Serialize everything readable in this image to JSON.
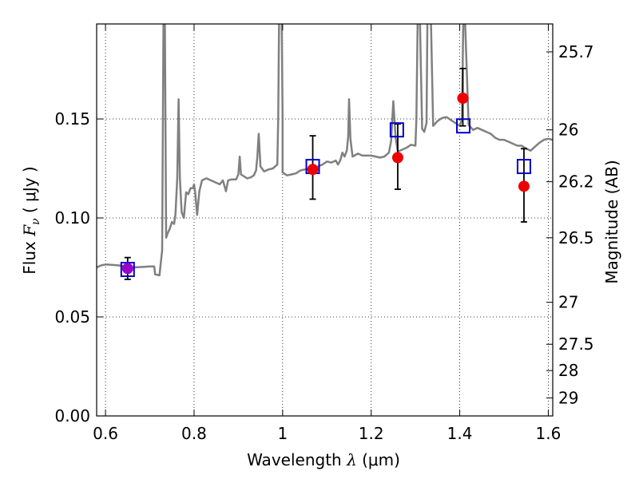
{
  "chart_data": {
    "type": "scatter",
    "xlabel": "Wavelength  λ (μm)",
    "xlabel_parts": {
      "text": "Wavelength  ",
      "sym": "λ",
      "unit": "(μm)"
    },
    "ylabel_parts": {
      "text": "Flux  ",
      "sym": "F",
      "sub": "ν",
      "unit": "( μJy )"
    },
    "ylabel_right": "Magnitude (AB)",
    "xlim": [
      0.58,
      1.61
    ],
    "ylim": [
      0.0,
      0.198
    ],
    "grid": true,
    "x_ticks": [
      {
        "value": 0.6,
        "label": "0.6"
      },
      {
        "value": 0.8,
        "label": "0.8"
      },
      {
        "value": 1.0,
        "label": "1"
      },
      {
        "value": 1.2,
        "label": "1.2"
      },
      {
        "value": 1.4,
        "label": "1.4"
      },
      {
        "value": 1.6,
        "label": "1.6"
      }
    ],
    "y_ticks": [
      {
        "value": 0.0,
        "label": "0.00"
      },
      {
        "value": 0.05,
        "label": "0.05"
      },
      {
        "value": 0.1,
        "label": "0.10"
      },
      {
        "value": 0.15,
        "label": "0.15"
      }
    ],
    "right_ticks": [
      {
        "flux": 0.1839,
        "label": "25.7"
      },
      {
        "flux": 0.1445,
        "label": "26"
      },
      {
        "flux": 0.1183,
        "label": "26.2"
      },
      {
        "flux": 0.09,
        "label": "26.5"
      },
      {
        "flux": 0.0574,
        "label": "27"
      },
      {
        "flux": 0.0362,
        "label": "27.5"
      },
      {
        "flux": 0.0229,
        "label": "28"
      },
      {
        "flux": 0.0091,
        "label": "29"
      }
    ],
    "series": [
      {
        "name": "model-spectrum",
        "kind": "line",
        "color": "#808080",
        "points": [
          [
            0.58,
            0.075
          ],
          [
            0.59,
            0.076
          ],
          [
            0.6,
            0.0765
          ],
          [
            0.62,
            0.0762
          ],
          [
            0.64,
            0.0758
          ],
          [
            0.66,
            0.075
          ],
          [
            0.68,
            0.0752
          ],
          [
            0.7,
            0.0755
          ],
          [
            0.71,
            0.0755
          ],
          [
            0.712,
            0.0715
          ],
          [
            0.722,
            0.071
          ],
          [
            0.724,
            0.0755
          ],
          [
            0.728,
            0.0835
          ],
          [
            0.731,
            0.2
          ],
          [
            0.734,
            0.2
          ],
          [
            0.737,
            0.09
          ],
          [
            0.74,
            0.092
          ],
          [
            0.745,
            0.0945
          ],
          [
            0.75,
            0.098
          ],
          [
            0.755,
            0.097
          ],
          [
            0.758,
            0.102
          ],
          [
            0.762,
            0.12
          ],
          [
            0.765,
            0.16
          ],
          [
            0.768,
            0.12
          ],
          [
            0.772,
            0.103
          ],
          [
            0.777,
            0.1
          ],
          [
            0.782,
            0.113
          ],
          [
            0.787,
            0.112
          ],
          [
            0.792,
            0.115
          ],
          [
            0.797,
            0.115
          ],
          [
            0.8,
            0.117
          ],
          [
            0.803,
            0.112
          ],
          [
            0.807,
            0.1015
          ],
          [
            0.812,
            0.1135
          ],
          [
            0.818,
            0.119
          ],
          [
            0.828,
            0.12
          ],
          [
            0.838,
            0.119
          ],
          [
            0.848,
            0.118
          ],
          [
            0.858,
            0.117
          ],
          [
            0.865,
            0.119
          ],
          [
            0.872,
            0.1135
          ],
          [
            0.877,
            0.119
          ],
          [
            0.885,
            0.1195
          ],
          [
            0.895,
            0.1195
          ],
          [
            0.9,
            0.122
          ],
          [
            0.903,
            0.131
          ],
          [
            0.906,
            0.122
          ],
          [
            0.92,
            0.12
          ],
          [
            0.928,
            0.1205
          ],
          [
            0.935,
            0.1215
          ],
          [
            0.94,
            0.124
          ],
          [
            0.943,
            0.131
          ],
          [
            0.946,
            0.1425
          ],
          [
            0.95,
            0.126
          ],
          [
            0.958,
            0.1235
          ],
          [
            0.968,
            0.1245
          ],
          [
            0.978,
            0.125
          ],
          [
            0.988,
            0.127
          ],
          [
            0.99,
            0.15
          ],
          [
            0.992,
            0.2
          ],
          [
            0.998,
            0.2
          ],
          [
            1.0,
            0.15
          ],
          [
            1.0,
            0.123
          ],
          [
            1.01,
            0.1215
          ],
          [
            1.02,
            0.122
          ],
          [
            1.03,
            0.1225
          ],
          [
            1.04,
            0.124
          ],
          [
            1.05,
            0.1245
          ],
          [
            1.06,
            0.125
          ],
          [
            1.07,
            0.124
          ],
          [
            1.08,
            0.126
          ],
          [
            1.09,
            0.127
          ],
          [
            1.1,
            0.1285
          ],
          [
            1.11,
            0.128
          ],
          [
            1.12,
            0.129
          ],
          [
            1.125,
            0.127
          ],
          [
            1.13,
            0.129
          ],
          [
            1.135,
            0.133
          ],
          [
            1.14,
            0.131
          ],
          [
            1.145,
            0.134
          ],
          [
            1.148,
            0.141
          ],
          [
            1.15,
            0.16
          ],
          [
            1.153,
            0.14
          ],
          [
            1.158,
            0.131
          ],
          [
            1.17,
            0.1325
          ],
          [
            1.18,
            0.1315
          ],
          [
            1.2,
            0.1315
          ],
          [
            1.22,
            0.1305
          ],
          [
            1.23,
            0.131
          ],
          [
            1.24,
            0.133
          ],
          [
            1.245,
            0.139
          ],
          [
            1.25,
            0.159
          ],
          [
            1.255,
            0.141
          ],
          [
            1.26,
            0.1335
          ],
          [
            1.27,
            0.1345
          ],
          [
            1.28,
            0.1355
          ],
          [
            1.29,
            0.137
          ],
          [
            1.3,
            0.1365
          ],
          [
            1.302,
            0.15
          ],
          [
            1.305,
            0.2
          ],
          [
            1.31,
            0.2
          ],
          [
            1.315,
            0.145
          ],
          [
            1.32,
            0.1435
          ],
          [
            1.325,
            0.148
          ],
          [
            1.327,
            0.2
          ],
          [
            1.335,
            0.2
          ],
          [
            1.34,
            0.1465
          ],
          [
            1.35,
            0.149
          ],
          [
            1.36,
            0.1505
          ],
          [
            1.37,
            0.151
          ],
          [
            1.38,
            0.1495
          ],
          [
            1.39,
            0.148
          ],
          [
            1.4,
            0.1465
          ],
          [
            1.405,
            0.15
          ],
          [
            1.408,
            0.2
          ],
          [
            1.412,
            0.2
          ],
          [
            1.42,
            0.147
          ],
          [
            1.43,
            0.1445
          ],
          [
            1.44,
            0.1455
          ],
          [
            1.45,
            0.1445
          ],
          [
            1.46,
            0.1435
          ],
          [
            1.47,
            0.1425
          ],
          [
            1.48,
            0.1405
          ],
          [
            1.49,
            0.1395
          ],
          [
            1.5,
            0.1395
          ],
          [
            1.51,
            0.1385
          ],
          [
            1.52,
            0.1375
          ],
          [
            1.53,
            0.1365
          ],
          [
            1.54,
            0.1365
          ],
          [
            1.55,
            0.135
          ],
          [
            1.56,
            0.134
          ],
          [
            1.57,
            0.136
          ],
          [
            1.58,
            0.138
          ],
          [
            1.59,
            0.1395
          ],
          [
            1.6,
            0.14
          ],
          [
            1.61,
            0.1395
          ]
        ]
      },
      {
        "name": "model-photometry",
        "kind": "open-square",
        "color": "#0000cc",
        "x": [
          0.65,
          1.068,
          1.258,
          1.408,
          1.545
        ],
        "y": [
          0.074,
          0.126,
          0.1445,
          0.1465,
          0.126
        ]
      },
      {
        "name": "observed-photometry",
        "kind": "filled-circle-errorbar",
        "color": "#ee0000",
        "x": [
          0.65,
          1.068,
          1.26,
          1.407,
          1.545
        ],
        "y": [
          0.0745,
          0.1245,
          0.1305,
          0.1605,
          0.116
        ],
        "yerr_low": [
          0.0055,
          0.015,
          0.016,
          0.014,
          0.018
        ],
        "yerr_high": [
          0.0055,
          0.017,
          0.017,
          0.015,
          0.019
        ],
        "first_point_color": "#9900cc"
      }
    ]
  }
}
